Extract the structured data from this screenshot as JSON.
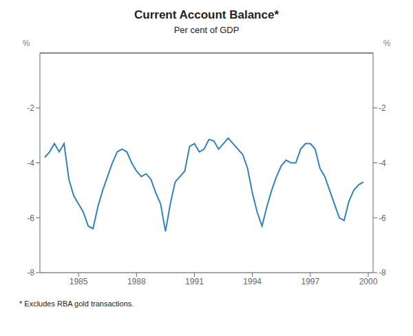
{
  "chart_data": {
    "type": "line",
    "title": "Current Account Balance*",
    "subtitle": "Per cent of GDP",
    "footnote": "* Excludes RBA gold transactions.",
    "annotations": [
      "%",
      "%"
    ],
    "grid": true,
    "xlim": [
      1983.0,
      2000.25
    ],
    "xticks": [
      1985,
      1988,
      1991,
      1994,
      1997,
      2000
    ],
    "ylim": [
      -8,
      0
    ],
    "yticks": [
      -2,
      -4,
      -6,
      -8
    ],
    "y2lim": [
      -8,
      0
    ],
    "y2ticks": [
      -2,
      -4,
      -6,
      -8
    ],
    "x": [
      1983.25,
      1983.5,
      1983.75,
      1984.0,
      1984.25,
      1984.5,
      1984.75,
      1985.0,
      1985.25,
      1985.5,
      1985.75,
      1986.0,
      1986.25,
      1986.5,
      1986.75,
      1987.0,
      1987.25,
      1987.5,
      1987.75,
      1988.0,
      1988.25,
      1988.5,
      1988.75,
      1989.0,
      1989.25,
      1989.5,
      1989.75,
      1990.0,
      1990.25,
      1990.5,
      1990.75,
      1991.0,
      1991.25,
      1991.5,
      1991.75,
      1992.0,
      1992.25,
      1992.5,
      1992.75,
      1993.0,
      1993.25,
      1993.5,
      1993.75,
      1994.0,
      1994.25,
      1994.5,
      1994.75,
      1995.0,
      1995.25,
      1995.5,
      1995.75,
      1996.0,
      1996.25,
      1996.5,
      1996.75,
      1997.0,
      1997.25,
      1997.5,
      1997.75,
      1998.0,
      1998.25,
      1998.5,
      1998.75,
      1999.0,
      1999.25,
      1999.5,
      1999.75
    ],
    "values": [
      -3.8,
      -3.6,
      -3.3,
      -3.6,
      -3.3,
      -4.6,
      -5.2,
      -5.5,
      -5.8,
      -6.3,
      -6.4,
      -5.6,
      -5.0,
      -4.5,
      -4.0,
      -3.6,
      -3.5,
      -3.6,
      -4.0,
      -4.3,
      -4.5,
      -4.4,
      -4.6,
      -5.1,
      -5.5,
      -6.5,
      -5.5,
      -4.7,
      -4.5,
      -4.3,
      -3.4,
      -3.3,
      -3.6,
      -3.5,
      -3.15,
      -3.2,
      -3.5,
      -3.3,
      -3.1,
      -3.3,
      -3.5,
      -3.7,
      -4.2,
      -5.1,
      -5.8,
      -6.3,
      -5.6,
      -5.0,
      -4.5,
      -4.1,
      -3.9,
      -4.0,
      -4.0,
      -3.5,
      -3.3,
      -3.3,
      -3.5,
      -4.2,
      -4.5,
      -5.0,
      -5.5,
      -6.0,
      -6.1,
      -5.4,
      -5.0,
      -4.8,
      -4.7
    ]
  }
}
